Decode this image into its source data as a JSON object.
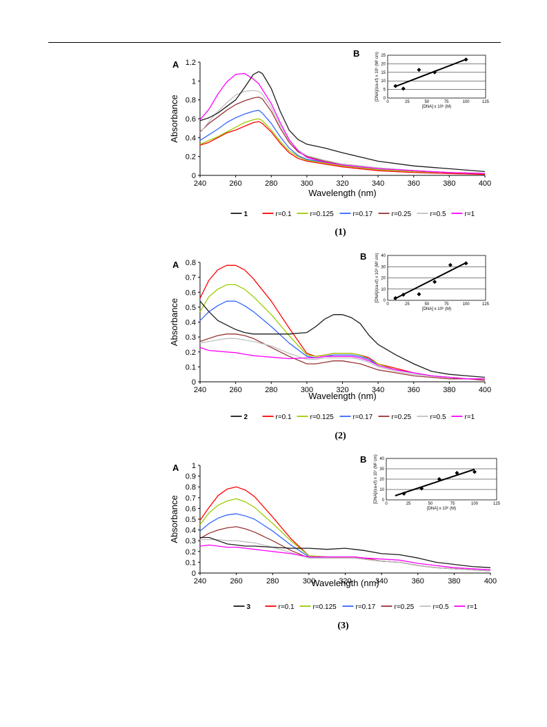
{
  "chart_data": [
    {
      "type": "line",
      "panel_label": "A",
      "inset_label": "B",
      "caption": "(1)",
      "xlabel": "Wavelength (nm)",
      "ylabel": "Absorbance",
      "xlim": [
        240,
        400
      ],
      "ylim": [
        0,
        1.2
      ],
      "x_ticks": [
        "240",
        "260",
        "280",
        "300",
        "320",
        "340",
        "360",
        "380",
        "400"
      ],
      "y_ticks": [
        "0",
        "0.2",
        "0.4",
        "0.6",
        "0.8",
        "1",
        "1.2"
      ],
      "x": [
        240,
        245,
        250,
        255,
        260,
        265,
        270,
        273,
        275,
        280,
        285,
        290,
        295,
        300,
        310,
        320,
        340,
        360,
        380,
        400
      ],
      "series": [
        {
          "name": "1",
          "color": "#1a1a1a",
          "bold": true,
          "values": [
            0.58,
            0.61,
            0.66,
            0.73,
            0.8,
            0.93,
            1.07,
            1.1,
            1.08,
            0.92,
            0.68,
            0.48,
            0.38,
            0.33,
            0.29,
            0.24,
            0.15,
            0.1,
            0.07,
            0.04
          ]
        },
        {
          "name": "r=0.1",
          "color": "#ff0000",
          "values": [
            0.32,
            0.35,
            0.4,
            0.45,
            0.48,
            0.52,
            0.56,
            0.57,
            0.55,
            0.46,
            0.34,
            0.24,
            0.18,
            0.15,
            0.12,
            0.09,
            0.05,
            0.03,
            0.02,
            0.01
          ]
        },
        {
          "name": "r=0.125",
          "color": "#99cc00",
          "values": [
            0.33,
            0.37,
            0.41,
            0.46,
            0.51,
            0.56,
            0.59,
            0.6,
            0.58,
            0.48,
            0.36,
            0.26,
            0.2,
            0.16,
            0.13,
            0.1,
            0.06,
            0.04,
            0.03,
            0.02
          ]
        },
        {
          "name": "r=0.17",
          "color": "#3366ff",
          "values": [
            0.37,
            0.43,
            0.49,
            0.56,
            0.61,
            0.65,
            0.68,
            0.69,
            0.66,
            0.55,
            0.41,
            0.29,
            0.21,
            0.17,
            0.14,
            0.11,
            0.07,
            0.05,
            0.03,
            0.02
          ]
        },
        {
          "name": "r=0.25",
          "color": "#993333",
          "values": [
            0.46,
            0.55,
            0.62,
            0.69,
            0.75,
            0.79,
            0.82,
            0.83,
            0.81,
            0.68,
            0.5,
            0.35,
            0.25,
            0.2,
            0.15,
            0.12,
            0.08,
            0.05,
            0.03,
            0.02
          ]
        },
        {
          "name": "r=0.5",
          "color": "#c0c0c0",
          "values": [
            0.45,
            0.57,
            0.68,
            0.77,
            0.85,
            0.89,
            0.9,
            0.89,
            0.86,
            0.72,
            0.53,
            0.37,
            0.27,
            0.21,
            0.16,
            0.12,
            0.08,
            0.05,
            0.03,
            0.02
          ]
        },
        {
          "name": "r=1",
          "color": "#ff00ff",
          "values": [
            0.59,
            0.7,
            0.86,
            0.99,
            1.07,
            1.08,
            1.02,
            0.97,
            0.91,
            0.76,
            0.56,
            0.38,
            0.26,
            0.19,
            0.14,
            0.11,
            0.07,
            0.05,
            0.03,
            0.02
          ]
        }
      ],
      "inset": {
        "type": "scatter",
        "ylabel": "[DNA]/(εa-εf) x 10⁶ (M² cm)",
        "xlabel": "[DNA] x 10⁶ (M)",
        "xlim": [
          0,
          125
        ],
        "ylim": [
          0,
          25
        ],
        "x_ticks": [
          "0",
          "25",
          "50",
          "75",
          "100",
          "125"
        ],
        "y_ticks": [
          "0",
          "5",
          "10",
          "15",
          "20",
          "25"
        ],
        "points": [
          [
            10,
            7
          ],
          [
            20,
            5.5
          ],
          [
            40,
            16.5
          ],
          [
            60,
            15
          ],
          [
            100,
            22.5
          ]
        ],
        "fit": [
          [
            10,
            6.8
          ],
          [
            100,
            22.6
          ]
        ]
      }
    },
    {
      "type": "line",
      "panel_label": "A",
      "inset_label": "B",
      "caption": "(2)",
      "xlabel": "Wavelength (nm)",
      "ylabel": "Absorbance",
      "xlim": [
        240,
        400
      ],
      "ylim": [
        0,
        0.8
      ],
      "x_ticks": [
        "240",
        "260",
        "280",
        "300",
        "320",
        "340",
        "360",
        "380",
        "400"
      ],
      "y_ticks": [
        "0",
        "0.1",
        "0.2",
        "0.3",
        "0.4",
        "0.5",
        "0.6",
        "0.7",
        "0.8"
      ],
      "x": [
        240,
        245,
        250,
        255,
        260,
        265,
        270,
        280,
        290,
        300,
        305,
        310,
        315,
        320,
        325,
        330,
        335,
        340,
        350,
        360,
        370,
        380,
        390,
        400
      ],
      "series": [
        {
          "name": "2",
          "color": "#1a1a1a",
          "bold": true,
          "values": [
            0.54,
            0.47,
            0.41,
            0.38,
            0.35,
            0.33,
            0.32,
            0.32,
            0.32,
            0.33,
            0.37,
            0.42,
            0.45,
            0.45,
            0.43,
            0.39,
            0.31,
            0.25,
            0.18,
            0.12,
            0.07,
            0.05,
            0.04,
            0.03
          ]
        },
        {
          "name": "r=0.1",
          "color": "#ff0000",
          "values": [
            0.56,
            0.68,
            0.75,
            0.78,
            0.78,
            0.75,
            0.69,
            0.54,
            0.36,
            0.19,
            0.17,
            0.18,
            0.19,
            0.19,
            0.19,
            0.18,
            0.16,
            0.12,
            0.09,
            0.06,
            0.04,
            0.03,
            0.02,
            0.02
          ]
        },
        {
          "name": "r=0.125",
          "color": "#99cc00",
          "values": [
            0.47,
            0.57,
            0.62,
            0.65,
            0.65,
            0.62,
            0.57,
            0.45,
            0.31,
            0.18,
            0.17,
            0.18,
            0.19,
            0.19,
            0.19,
            0.18,
            0.15,
            0.12,
            0.08,
            0.06,
            0.04,
            0.03,
            0.02,
            0.02
          ]
        },
        {
          "name": "r=0.17",
          "color": "#3366ff",
          "values": [
            0.41,
            0.47,
            0.51,
            0.54,
            0.54,
            0.51,
            0.47,
            0.37,
            0.26,
            0.17,
            0.16,
            0.17,
            0.18,
            0.18,
            0.18,
            0.17,
            0.15,
            0.11,
            0.08,
            0.06,
            0.04,
            0.03,
            0.02,
            0.02
          ]
        },
        {
          "name": "r=0.25",
          "color": "#993333",
          "values": [
            0.27,
            0.29,
            0.31,
            0.32,
            0.32,
            0.31,
            0.29,
            0.23,
            0.17,
            0.12,
            0.12,
            0.13,
            0.14,
            0.14,
            0.13,
            0.12,
            0.1,
            0.08,
            0.06,
            0.04,
            0.03,
            0.02,
            0.02,
            0.01
          ]
        },
        {
          "name": "r=0.5",
          "color": "#c0c0c0",
          "values": [
            0.26,
            0.27,
            0.28,
            0.29,
            0.29,
            0.28,
            0.27,
            0.24,
            0.19,
            0.15,
            0.15,
            0.16,
            0.16,
            0.16,
            0.16,
            0.15,
            0.13,
            0.1,
            0.07,
            0.05,
            0.04,
            0.03,
            0.02,
            0.02
          ]
        },
        {
          "name": "r=1",
          "color": "#ff00ff",
          "values": [
            0.23,
            0.21,
            0.205,
            0.2,
            0.195,
            0.185,
            0.175,
            0.165,
            0.155,
            0.16,
            0.16,
            0.17,
            0.17,
            0.17,
            0.17,
            0.16,
            0.14,
            0.11,
            0.08,
            0.06,
            0.04,
            0.03,
            0.02,
            0.02
          ]
        }
      ],
      "inset": {
        "type": "scatter",
        "ylabel": "[DNA]/(εa-εf) x 10⁸ (M² cm)",
        "xlabel": "[DNA] x 10⁶ (M)",
        "xlim": [
          0,
          125
        ],
        "ylim": [
          0,
          40
        ],
        "x_ticks": [
          "0",
          "25",
          "50",
          "75",
          "100",
          "125"
        ],
        "y_ticks": [
          "0",
          "10",
          "20",
          "30",
          "40"
        ],
        "points": [
          [
            10,
            2
          ],
          [
            20,
            5
          ],
          [
            40,
            5.5
          ],
          [
            60,
            16.5
          ],
          [
            80,
            31.5
          ],
          [
            100,
            33
          ]
        ],
        "fit": [
          [
            8,
            1
          ],
          [
            100,
            33.5
          ]
        ]
      }
    },
    {
      "type": "line",
      "panel_label": "A",
      "inset_label": "B",
      "caption": "(3)",
      "xlabel": "Wavelength (nm)",
      "ylabel": "Absorbance",
      "xlim": [
        240,
        400
      ],
      "ylim": [
        0,
        1
      ],
      "x_ticks": [
        "240",
        "260",
        "280",
        "300",
        "320",
        "340",
        "360",
        "380",
        "400"
      ],
      "y_ticks": [
        "0",
        "0.1",
        "0.2",
        "0.3",
        "0.4",
        "0.5",
        "0.6",
        "0.7",
        "0.8",
        "0.9",
        "1"
      ],
      "x": [
        240,
        245,
        250,
        255,
        260,
        265,
        270,
        280,
        290,
        300,
        310,
        320,
        325,
        330,
        340,
        350,
        360,
        370,
        380,
        390,
        400
      ],
      "series": [
        {
          "name": "3",
          "color": "#1a1a1a",
          "bold": true,
          "values": [
            0.33,
            0.33,
            0.3,
            0.27,
            0.26,
            0.25,
            0.25,
            0.24,
            0.23,
            0.23,
            0.22,
            0.23,
            0.22,
            0.21,
            0.18,
            0.17,
            0.14,
            0.1,
            0.08,
            0.06,
            0.05
          ]
        },
        {
          "name": "r=0.1",
          "color": "#ff0000",
          "values": [
            0.49,
            0.61,
            0.72,
            0.78,
            0.8,
            0.77,
            0.71,
            0.52,
            0.32,
            0.16,
            0.15,
            0.15,
            0.15,
            0.14,
            0.11,
            0.1,
            0.07,
            0.05,
            0.04,
            0.03,
            0.02
          ]
        },
        {
          "name": "r=0.125",
          "color": "#99cc00",
          "values": [
            0.45,
            0.56,
            0.63,
            0.67,
            0.69,
            0.66,
            0.61,
            0.46,
            0.3,
            0.16,
            0.15,
            0.15,
            0.14,
            0.13,
            0.11,
            0.1,
            0.07,
            0.05,
            0.04,
            0.03,
            0.02
          ]
        },
        {
          "name": "r=0.17",
          "color": "#3366ff",
          "values": [
            0.39,
            0.46,
            0.51,
            0.54,
            0.55,
            0.53,
            0.5,
            0.39,
            0.26,
            0.15,
            0.14,
            0.14,
            0.14,
            0.13,
            0.11,
            0.1,
            0.07,
            0.05,
            0.04,
            0.03,
            0.02
          ]
        },
        {
          "name": "r=0.25",
          "color": "#993333",
          "values": [
            0.32,
            0.37,
            0.4,
            0.42,
            0.43,
            0.41,
            0.38,
            0.3,
            0.21,
            0.14,
            0.14,
            0.14,
            0.14,
            0.13,
            0.11,
            0.1,
            0.07,
            0.05,
            0.04,
            0.03,
            0.02
          ]
        },
        {
          "name": "r=0.5",
          "color": "#c0c0c0",
          "values": [
            0.31,
            0.31,
            0.31,
            0.3,
            0.3,
            0.29,
            0.28,
            0.24,
            0.19,
            0.14,
            0.14,
            0.14,
            0.14,
            0.13,
            0.11,
            0.1,
            0.07,
            0.05,
            0.04,
            0.03,
            0.02
          ]
        },
        {
          "name": "r=1",
          "color": "#ff00ff",
          "values": [
            0.25,
            0.26,
            0.25,
            0.24,
            0.24,
            0.23,
            0.22,
            0.2,
            0.18,
            0.15,
            0.15,
            0.15,
            0.15,
            0.14,
            0.13,
            0.12,
            0.09,
            0.07,
            0.05,
            0.04,
            0.03
          ]
        }
      ],
      "inset": {
        "type": "scatter",
        "ylabel": "[DNA]/(εa-εf) x 10⁷ (M² cm)",
        "xlabel": "[DNA] x 10⁶ (M)",
        "xlim": [
          0,
          125
        ],
        "ylim": [
          0,
          40
        ],
        "x_ticks": [
          "0",
          "25",
          "50",
          "75",
          "100",
          "125"
        ],
        "y_ticks": [
          "0",
          "10",
          "20",
          "30",
          "40"
        ],
        "points": [
          [
            20,
            6
          ],
          [
            40,
            11
          ],
          [
            60,
            20
          ],
          [
            80,
            26
          ],
          [
            100,
            27
          ]
        ],
        "fit": [
          [
            10,
            4
          ],
          [
            100,
            29.5
          ]
        ]
      }
    }
  ]
}
